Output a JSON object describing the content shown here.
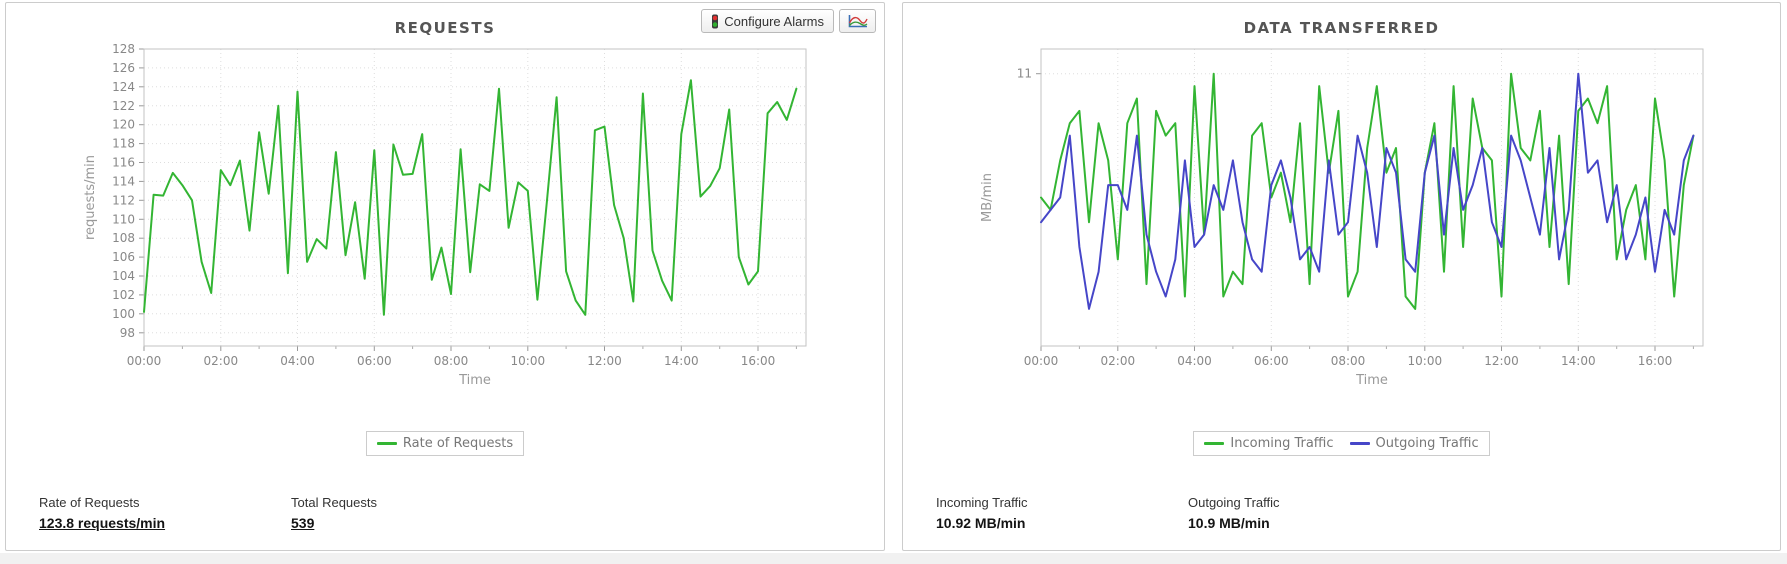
{
  "toolbar": {
    "configure_alarms_label": "Configure Alarms"
  },
  "left_panel": {
    "stats": [
      {
        "label": "Rate of Requests",
        "value": "123.8 requests/min",
        "underline": true
      },
      {
        "label": "Total Requests",
        "value": "539",
        "underline": true
      }
    ]
  },
  "right_panel": {
    "stats": [
      {
        "label": "Incoming Traffic",
        "value": "10.92 MB/min",
        "underline": false
      },
      {
        "label": "Outgoing Traffic",
        "value": "10.9 MB/min",
        "underline": false
      }
    ]
  },
  "chart_data": [
    {
      "type": "line",
      "title": "REQUESTS",
      "xlabel": "Time",
      "ylabel": "requests/min",
      "grid": true,
      "legend_position": "bottom",
      "x_interval_minutes": 15,
      "xlim_minutes": [
        0,
        1035
      ],
      "x_tick_minutes": [
        0,
        120,
        240,
        360,
        480,
        600,
        720,
        840,
        960
      ],
      "x_tick_labels": [
        "00:00",
        "02:00",
        "04:00",
        "06:00",
        "08:00",
        "10:00",
        "12:00",
        "14:00",
        "16:00"
      ],
      "ylim": [
        96.6,
        128
      ],
      "y_ticks": [
        98,
        100,
        102,
        104,
        106,
        108,
        110,
        112,
        114,
        116,
        118,
        120,
        122,
        124,
        126,
        128
      ],
      "series": [
        {
          "name": "Rate of Requests",
          "color": "#33b533",
          "values": [
            100.2,
            112.6,
            112.5,
            114.9,
            113.6,
            112.0,
            105.5,
            102.2,
            115.2,
            113.6,
            116.2,
            108.8,
            119.2,
            112.7,
            122.0,
            104.3,
            123.5,
            105.5,
            107.9,
            106.9,
            117.1,
            106.2,
            111.8,
            103.7,
            117.3,
            99.9,
            117.9,
            114.7,
            114.8,
            119.0,
            103.6,
            107.0,
            102.1,
            117.4,
            104.4,
            113.7,
            113.0,
            123.8,
            109.1,
            113.9,
            113.0,
            101.5,
            112.0,
            122.9,
            104.5,
            101.4,
            99.9,
            119.4,
            119.8,
            111.5,
            108.0,
            101.3,
            123.3,
            106.7,
            103.5,
            101.4,
            119.0,
            124.7,
            112.4,
            113.5,
            115.4,
            121.6,
            106.0,
            103.1,
            104.5,
            121.2,
            122.4,
            120.5,
            123.8
          ]
        }
      ]
    },
    {
      "type": "line",
      "title": "DATA TRANSFERRED",
      "xlabel": "Time",
      "ylabel": "MB/min",
      "grid": true,
      "legend_position": "bottom",
      "x_interval_minutes": 15,
      "xlim_minutes": [
        0,
        1035
      ],
      "x_tick_minutes": [
        0,
        120,
        240,
        360,
        480,
        600,
        720,
        840,
        960
      ],
      "x_tick_labels": [
        "00:00",
        "02:00",
        "04:00",
        "06:00",
        "08:00",
        "10:00",
        "12:00",
        "14:00",
        "16:00"
      ],
      "ylim": [
        10.78,
        11.02
      ],
      "y_ticks": [
        11
      ],
      "series": [
        {
          "name": "Incoming Traffic",
          "color": "#33b533",
          "values": [
            10.9,
            10.89,
            10.93,
            10.96,
            10.97,
            10.88,
            10.96,
            10.93,
            10.85,
            10.96,
            10.98,
            10.83,
            10.97,
            10.95,
            10.96,
            10.82,
            10.99,
            10.87,
            11.0,
            10.82,
            10.84,
            10.83,
            10.95,
            10.96,
            10.9,
            10.92,
            10.88,
            10.96,
            10.83,
            10.99,
            10.92,
            10.97,
            10.82,
            10.84,
            10.94,
            10.99,
            10.92,
            10.94,
            10.82,
            10.81,
            10.92,
            10.96,
            10.84,
            10.99,
            10.86,
            10.98,
            10.94,
            10.93,
            10.82,
            11.0,
            10.94,
            10.93,
            10.97,
            10.86,
            10.95,
            10.83,
            10.97,
            10.98,
            10.96,
            10.99,
            10.85,
            10.89,
            10.91,
            10.85,
            10.98,
            10.93,
            10.82,
            10.91,
            10.95
          ]
        },
        {
          "name": "Outgoing Traffic",
          "color": "#4646c8",
          "values": [
            10.88,
            10.89,
            10.9,
            10.95,
            10.86,
            10.81,
            10.84,
            10.91,
            10.91,
            10.89,
            10.95,
            10.87,
            10.84,
            10.82,
            10.85,
            10.93,
            10.86,
            10.87,
            10.91,
            10.89,
            10.93,
            10.88,
            10.85,
            10.84,
            10.91,
            10.93,
            10.9,
            10.85,
            10.86,
            10.84,
            10.93,
            10.87,
            10.88,
            10.95,
            10.92,
            10.86,
            10.94,
            10.92,
            10.85,
            10.84,
            10.92,
            10.95,
            10.87,
            10.94,
            10.89,
            10.91,
            10.94,
            10.88,
            10.86,
            10.95,
            10.93,
            10.9,
            10.87,
            10.94,
            10.85,
            10.89,
            11.0,
            10.92,
            10.93,
            10.88,
            10.91,
            10.85,
            10.87,
            10.9,
            10.84,
            10.89,
            10.87,
            10.93,
            10.95
          ]
        }
      ]
    }
  ]
}
